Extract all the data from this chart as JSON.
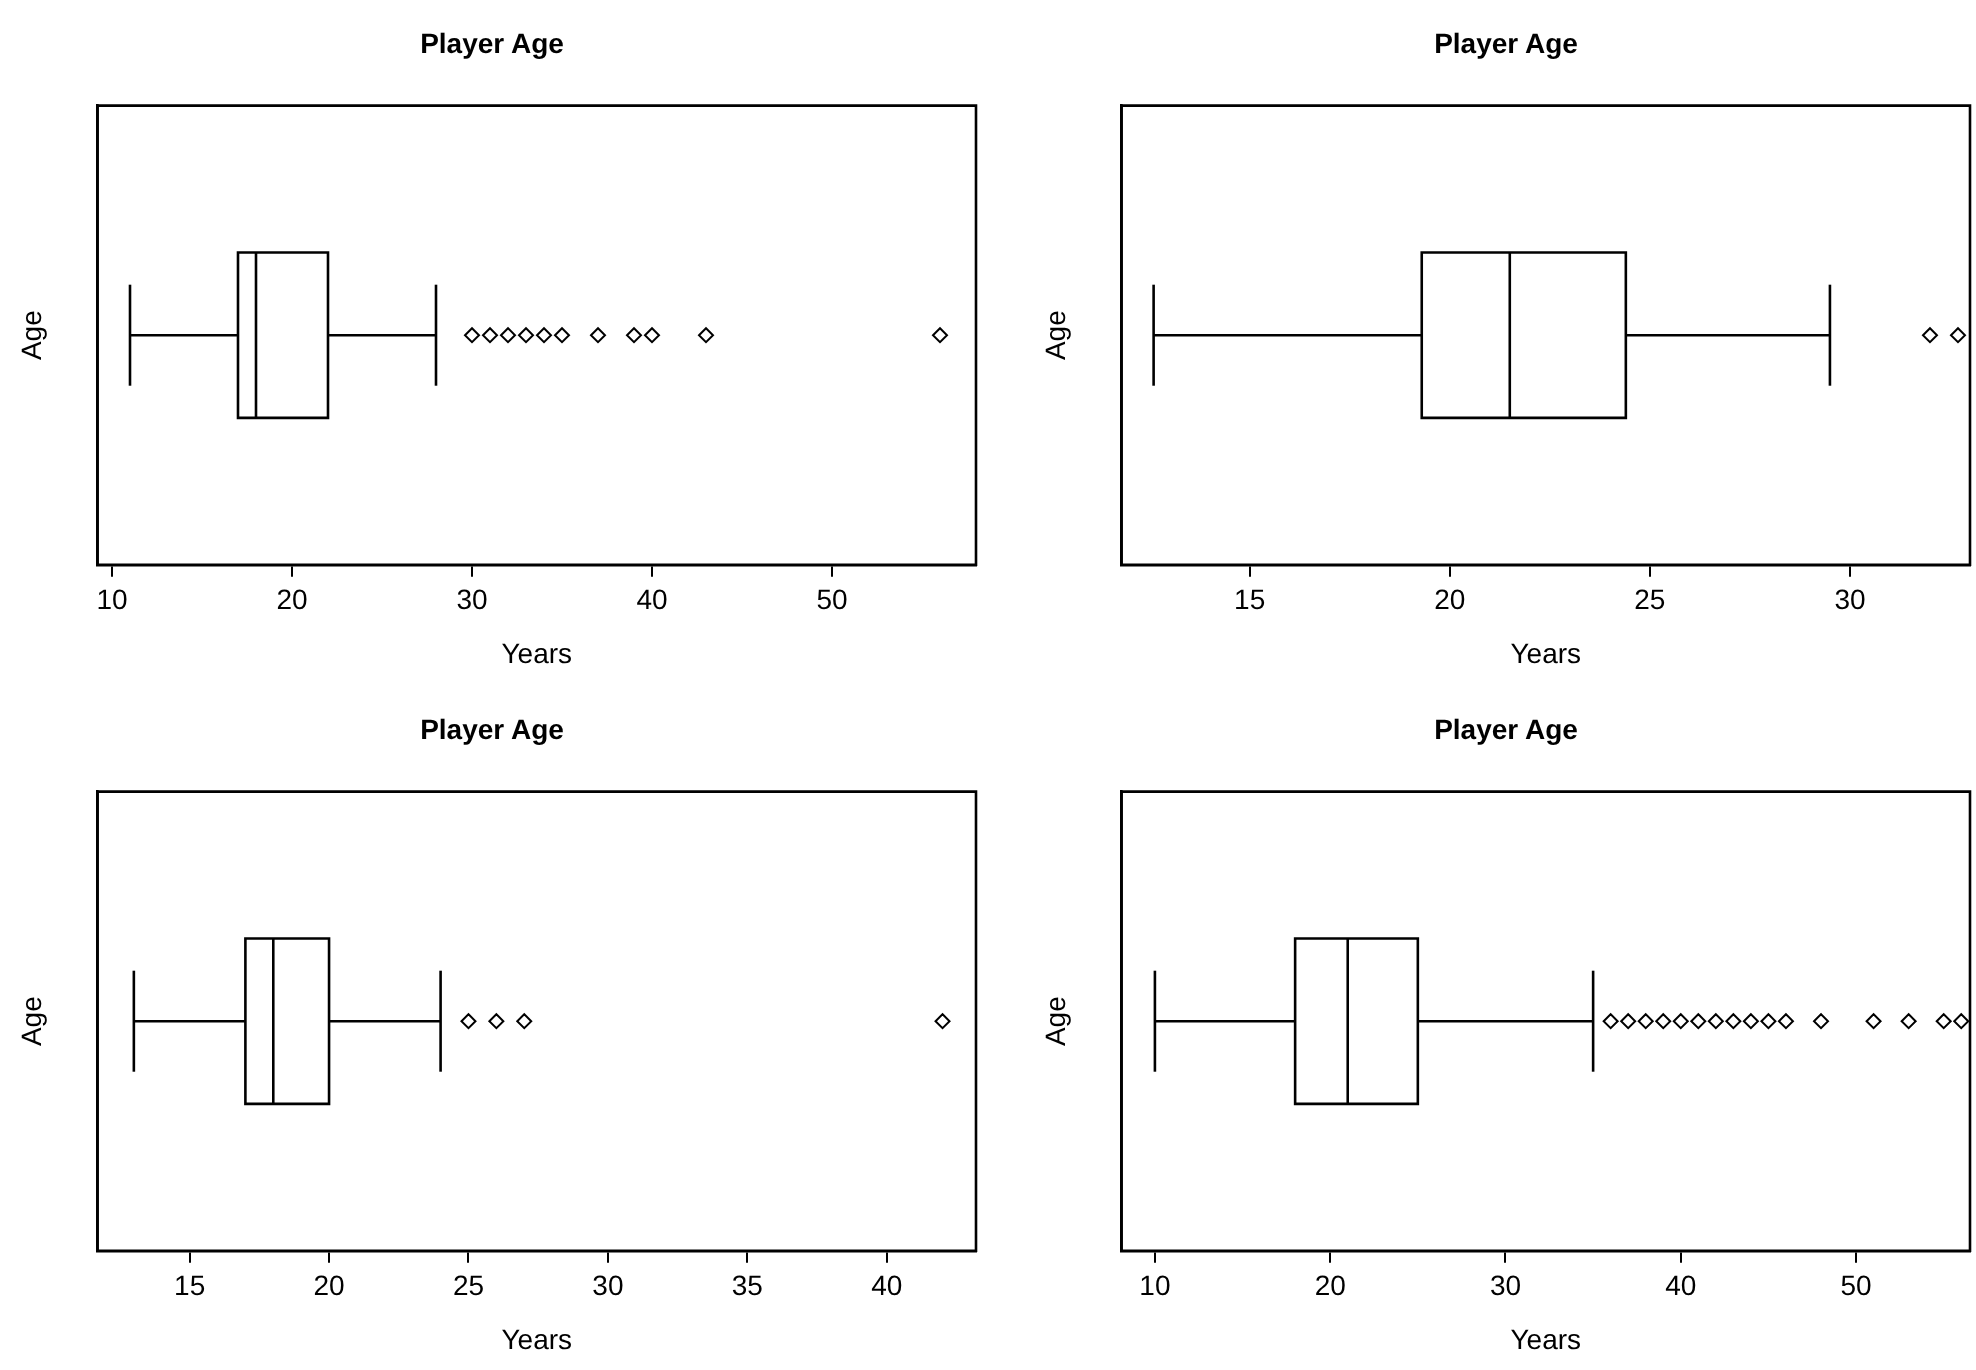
{
  "chart_data": [
    {
      "type": "box",
      "title": "Player Age",
      "xlabel": "Years",
      "ylabel": "Age",
      "orientation": "horizontal",
      "categories": [
        null
      ],
      "xlim": [
        9.2,
        58
      ],
      "xticks": [
        10,
        20,
        30,
        40,
        50
      ],
      "grid": false,
      "legend": false,
      "marker": "diamond",
      "boxes": [
        {
          "low": 11,
          "q1": 17,
          "median": 18,
          "q3": 22,
          "high": 28,
          "outliers": [
            30,
            31,
            32,
            33,
            34,
            35,
            37,
            39,
            40,
            43,
            56
          ]
        }
      ]
    },
    {
      "type": "box",
      "title": "Player Age",
      "xlabel": "Years",
      "ylabel": "Age",
      "orientation": "horizontal",
      "categories": [
        null
      ],
      "xlim": [
        11.8,
        33
      ],
      "xticks": [
        15,
        20,
        25,
        30
      ],
      "grid": false,
      "legend": false,
      "marker": "diamond",
      "boxes": [
        {
          "low": 12.6,
          "q1": 19.3,
          "median": 21.5,
          "q3": 24.4,
          "high": 29.5,
          "outliers": [
            32,
            32.7
          ]
        }
      ]
    },
    {
      "type": "box",
      "title": "Player Age",
      "xlabel": "Years",
      "ylabel": "Age",
      "orientation": "horizontal",
      "categories": [
        null
      ],
      "xlim": [
        11.7,
        43.2
      ],
      "xticks": [
        15,
        20,
        25,
        30,
        35,
        40
      ],
      "grid": false,
      "legend": false,
      "marker": "diamond",
      "boxes": [
        {
          "low": 13,
          "q1": 17,
          "median": 18,
          "q3": 20,
          "high": 24,
          "outliers": [
            25,
            26,
            27,
            42
          ]
        }
      ]
    },
    {
      "type": "box",
      "title": "Player Age",
      "xlabel": "Years",
      "ylabel": "Age",
      "orientation": "horizontal",
      "categories": [
        null
      ],
      "xlim": [
        8.1,
        56.5
      ],
      "xticks": [
        10,
        20,
        30,
        40,
        50
      ],
      "grid": false,
      "legend": false,
      "marker": "diamond",
      "boxes": [
        {
          "low": 10,
          "q1": 18,
          "median": 21,
          "q3": 25,
          "high": 35,
          "outliers": [
            36,
            37,
            38,
            39,
            40,
            41,
            42,
            43,
            44,
            45,
            46,
            48,
            51,
            53,
            55,
            56
          ]
        }
      ]
    }
  ]
}
